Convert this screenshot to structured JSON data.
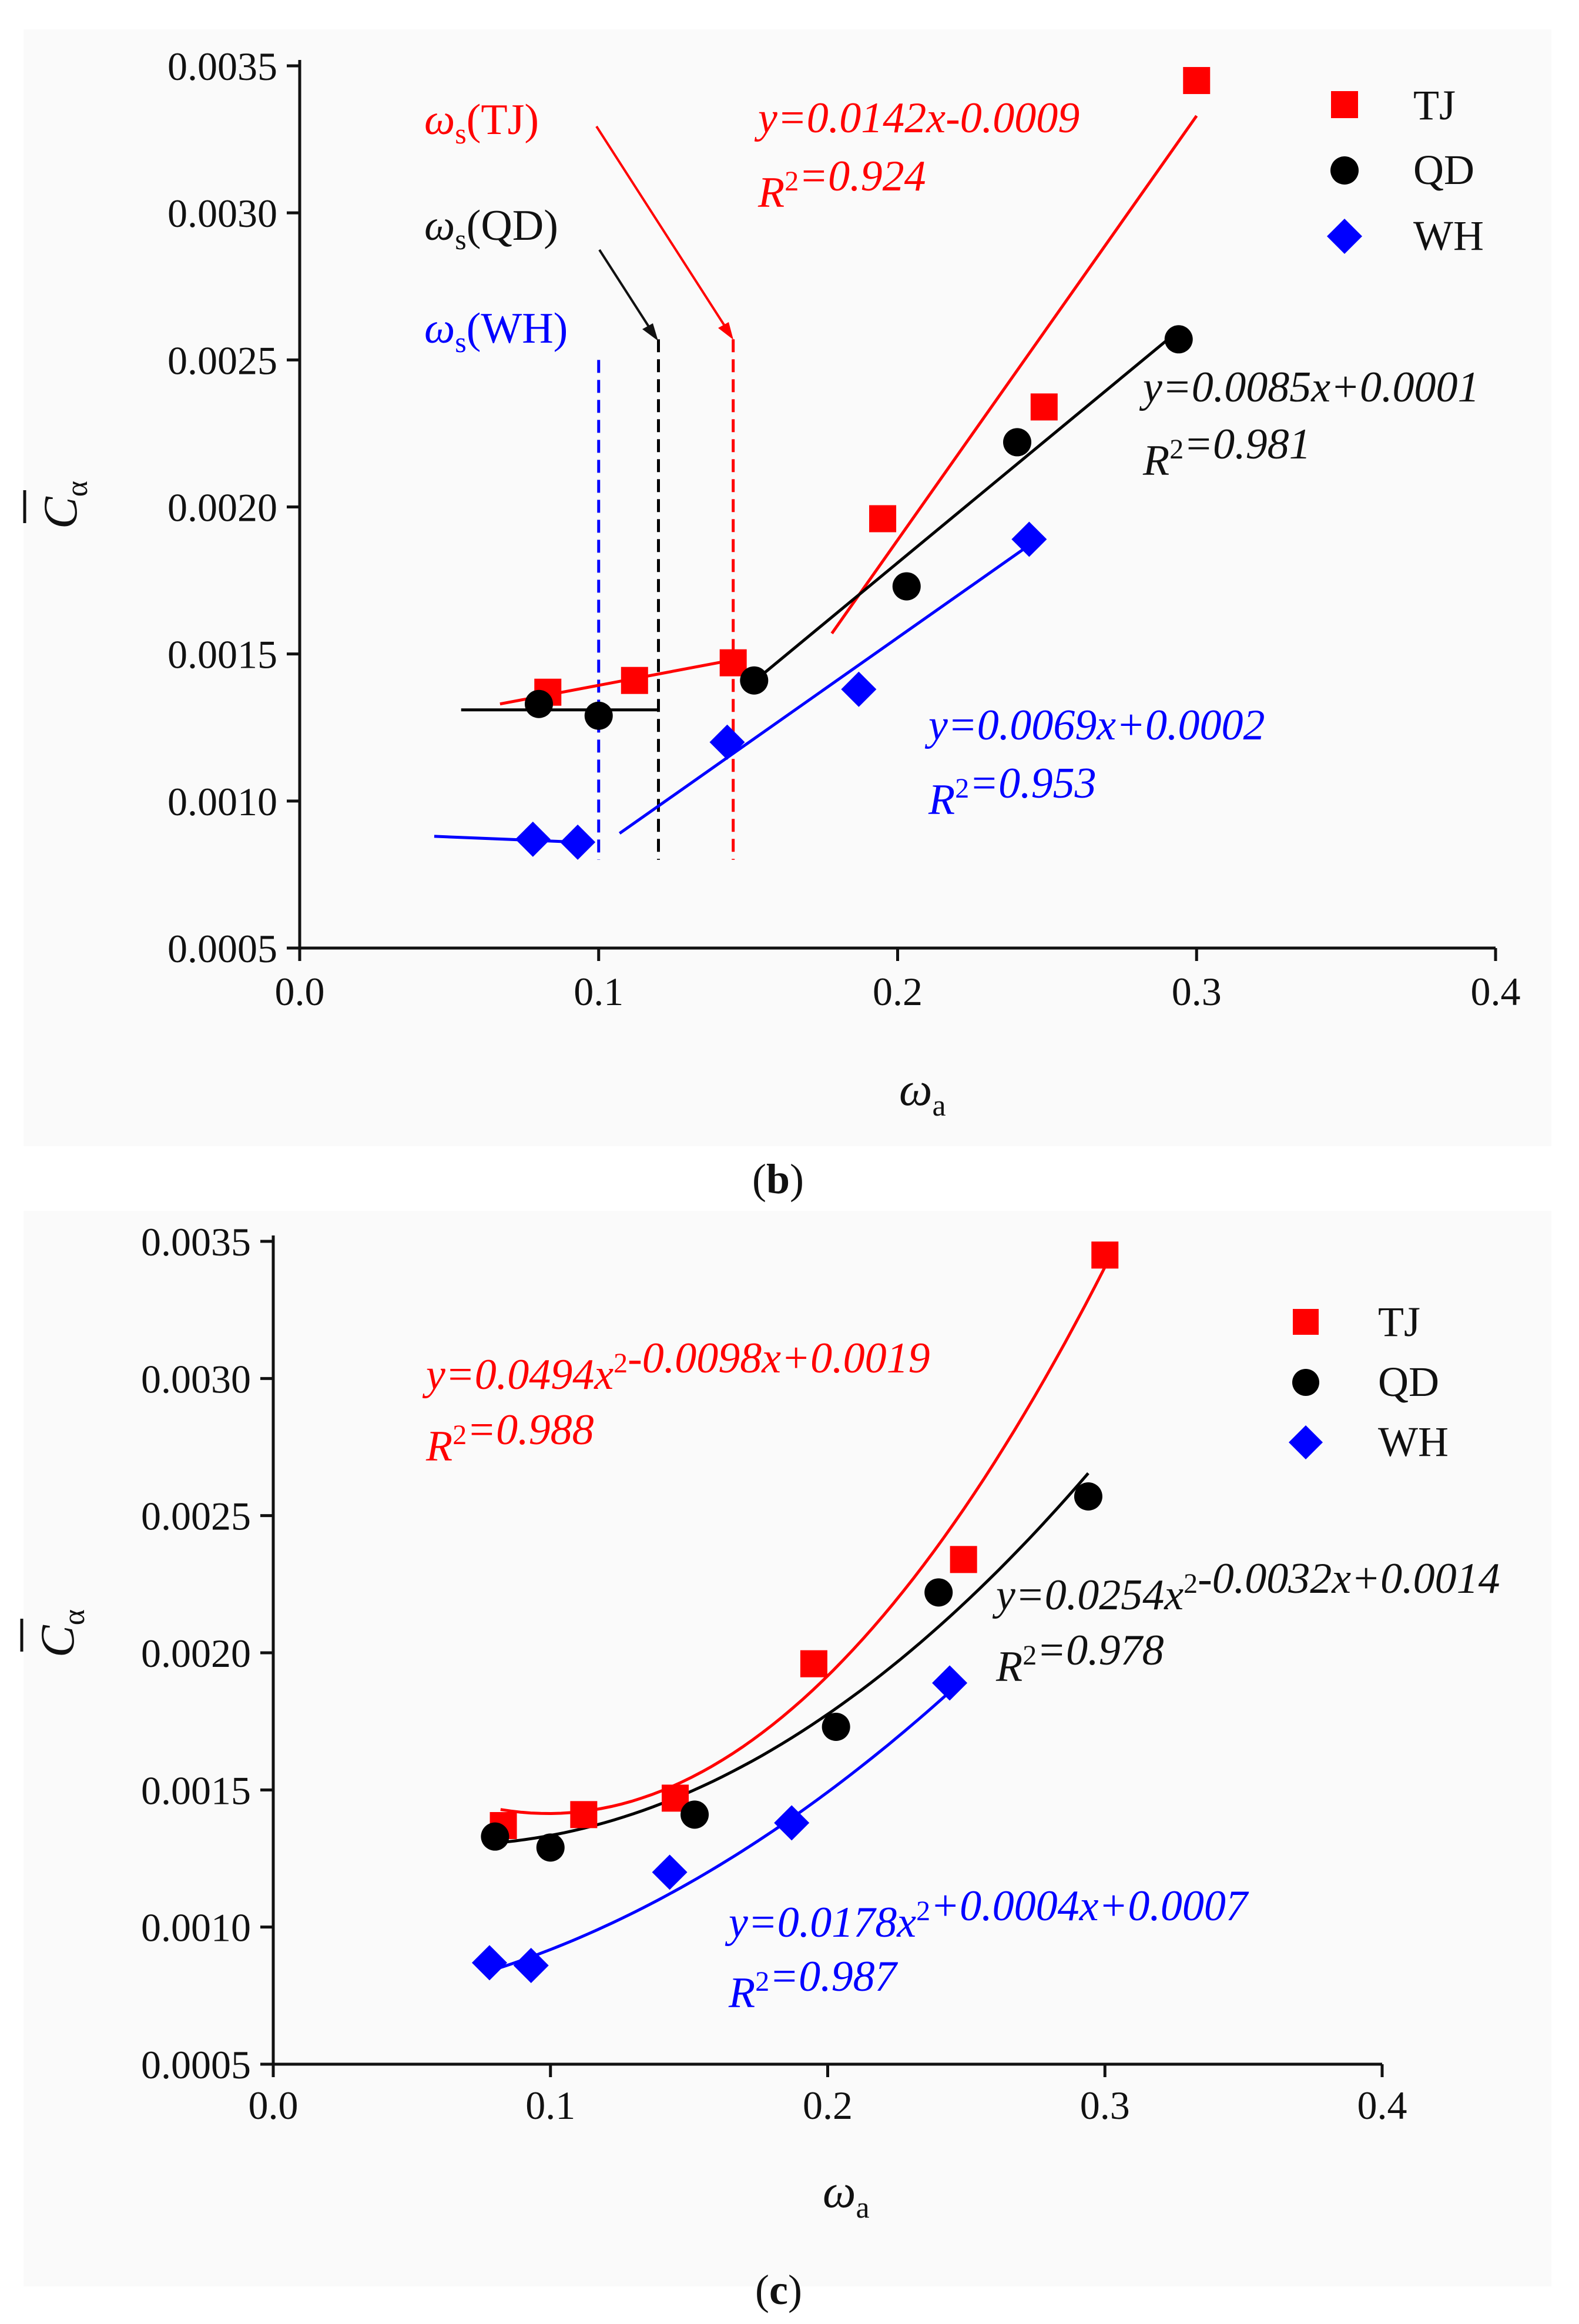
{
  "chart_data": [
    {
      "panel": "b",
      "caption": "b",
      "type": "scatter",
      "xlabel": "ω",
      "xlabel_sub": "a",
      "ylabel": "C",
      "ylabel_sub": "α",
      "xlim": [
        0,
        0.4
      ],
      "ylim": [
        0.0005,
        0.0035
      ],
      "xticks": [
        "0.0",
        "0.1",
        "0.2",
        "0.3",
        "0.4"
      ],
      "yticks": [
        "0.0005",
        "0.0010",
        "0.0015",
        "0.0020",
        "0.0025",
        "0.0030",
        "0.0035"
      ],
      "grid": false,
      "legend_position": "top-right",
      "colors": {
        "TJ": "#ff0000",
        "QD": "#000000",
        "WH": "#0000ff"
      },
      "series": [
        {
          "name": "TJ",
          "marker": "square",
          "color": "#ff0000",
          "points": [
            [
              0.083,
              0.00137
            ],
            [
              0.112,
              0.00141
            ],
            [
              0.145,
              0.00147
            ],
            [
              0.195,
              0.00196
            ],
            [
              0.249,
              0.00234
            ],
            [
              0.3,
              0.00345
            ]
          ]
        },
        {
          "name": "QD",
          "marker": "circle",
          "color": "#000000",
          "points": [
            [
              0.08,
              0.00133
            ],
            [
              0.1,
              0.00129
            ],
            [
              0.152,
              0.00141
            ],
            [
              0.203,
              0.00173
            ],
            [
              0.24,
              0.00222
            ],
            [
              0.294,
              0.00257
            ]
          ]
        },
        {
          "name": "WH",
          "marker": "diamond",
          "color": "#0000ff",
          "points": [
            [
              0.078,
              0.00087
            ],
            [
              0.093,
              0.00086
            ],
            [
              0.143,
              0.0012
            ],
            [
              0.187,
              0.00138
            ],
            [
              0.244,
              0.00189
            ]
          ]
        }
      ],
      "fit_lines": [
        {
          "color": "#ff0000",
          "x": [
            0.067,
            0.145
          ],
          "y": [
            0.00133,
            0.00148
          ]
        },
        {
          "color": "#ff0000",
          "x": [
            0.178,
            0.3
          ],
          "y": [
            0.00157,
            0.00333
          ]
        },
        {
          "color": "#000000",
          "x": [
            0.054,
            0.12
          ],
          "y": [
            0.00131,
            0.00131
          ]
        },
        {
          "color": "#000000",
          "x": [
            0.15,
            0.294
          ],
          "y": [
            0.00139,
            0.0026
          ]
        },
        {
          "color": "#0000ff",
          "x": [
            0.045,
            0.093
          ],
          "y": [
            0.00088,
            0.00086
          ]
        },
        {
          "color": "#0000ff",
          "x": [
            0.107,
            0.244
          ],
          "y": [
            0.00089,
            0.00187
          ]
        }
      ],
      "threshold_lines": [
        {
          "label": "ω",
          "label_sub": "s",
          "label_tail": "(TJ)",
          "color": "#ff0000",
          "x": 0.145
        },
        {
          "label": "ω",
          "label_sub": "s",
          "label_tail": "(QD)",
          "color": "#000000",
          "x": 0.12
        },
        {
          "label": "ω",
          "label_sub": "s",
          "label_tail": "(WH)",
          "color": "#0000ff",
          "x": 0.1
        }
      ],
      "equations": [
        {
          "color": "#ff0000",
          "eq": "y=0.0142x-0.0009",
          "r2": "R2=0.924"
        },
        {
          "color": "#000000",
          "eq": "y=0.0085x+0.0001",
          "r2": "R2=0.981"
        },
        {
          "color": "#0000ff",
          "eq": "y=0.0069x+0.0002",
          "r2": "R2=0.953"
        }
      ]
    },
    {
      "panel": "c",
      "caption": "c",
      "type": "scatter",
      "xlabel": "ω",
      "xlabel_sub": "a",
      "ylabel": "C",
      "ylabel_sub": "α",
      "xlim": [
        0,
        0.4
      ],
      "ylim": [
        0.0005,
        0.0035
      ],
      "xticks": [
        "0.0",
        "0.1",
        "0.2",
        "0.3",
        "0.4"
      ],
      "yticks": [
        "0.0005",
        "0.0010",
        "0.0015",
        "0.0020",
        "0.0025",
        "0.0030",
        "0.0035"
      ],
      "grid": false,
      "legend_position": "top-right",
      "colors": {
        "TJ": "#ff0000",
        "QD": "#000000",
        "WH": "#0000ff"
      },
      "series": [
        {
          "name": "TJ",
          "marker": "square",
          "color": "#ff0000",
          "points": [
            [
              0.083,
              0.00137
            ],
            [
              0.112,
              0.00141
            ],
            [
              0.145,
              0.00147
            ],
            [
              0.195,
              0.00196
            ],
            [
              0.249,
              0.00234
            ],
            [
              0.3,
              0.00345
            ]
          ]
        },
        {
          "name": "QD",
          "marker": "circle",
          "color": "#000000",
          "points": [
            [
              0.08,
              0.00133
            ],
            [
              0.1,
              0.00129
            ],
            [
              0.152,
              0.00141
            ],
            [
              0.203,
              0.00173
            ],
            [
              0.24,
              0.00222
            ],
            [
              0.294,
              0.00257
            ]
          ]
        },
        {
          "name": "WH",
          "marker": "diamond",
          "color": "#0000ff",
          "points": [
            [
              0.078,
              0.00087
            ],
            [
              0.093,
              0.00086
            ],
            [
              0.143,
              0.0012
            ],
            [
              0.187,
              0.00138
            ],
            [
              0.244,
              0.00189
            ]
          ]
        }
      ],
      "fit_curves": [
        {
          "color": "#ff0000",
          "coef": [
            0.0494,
            -0.0098,
            0.0019
          ],
          "x_range": [
            0.082,
            0.3
          ]
        },
        {
          "color": "#000000",
          "coef": [
            0.0254,
            -0.0032,
            0.0014
          ],
          "x_range": [
            0.08,
            0.294
          ]
        },
        {
          "color": "#0000ff",
          "coef": [
            0.0178,
            0.0004,
            0.0007
          ],
          "x_range": [
            0.078,
            0.244
          ]
        }
      ],
      "equations": [
        {
          "color": "#ff0000",
          "eq": "y=0.0494x2-0.0098x+0.0019",
          "r2": "R2=0.988"
        },
        {
          "color": "#000000",
          "eq": "y=0.0254x2-0.0032x+0.0014",
          "r2": "R2=0.978"
        },
        {
          "color": "#0000ff",
          "eq": "y=0.0178x2+0.0004x+0.0007",
          "r2": "R2=0.987"
        }
      ]
    }
  ]
}
